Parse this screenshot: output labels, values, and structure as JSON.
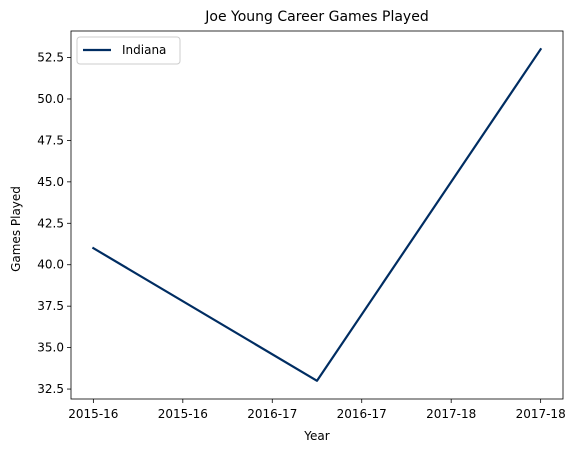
{
  "chart_data": {
    "type": "line",
    "title": "Joe Young  Career Games Played",
    "xlabel": "Year",
    "ylabel": "Games Played",
    "x": [
      0,
      1,
      2
    ],
    "x_tick_positions": [
      0,
      0.4,
      0.8,
      1.2,
      1.6,
      2.0
    ],
    "x_tick_labels": [
      "2015-16",
      "2015-16",
      "2016-17",
      "2016-17",
      "2017-18",
      "2017-18"
    ],
    "xlim": [
      -0.1,
      2.1
    ],
    "ylim": [
      31.9,
      54.1
    ],
    "y_ticks": [
      32.5,
      35.0,
      37.5,
      40.0,
      42.5,
      45.0,
      47.5,
      50.0,
      52.5
    ],
    "y_tick_labels": [
      "32.5",
      "35.0",
      "37.5",
      "40.0",
      "42.5",
      "45.0",
      "47.5",
      "50.0",
      "52.5"
    ],
    "series": [
      {
        "name": "Indiana",
        "values": [
          41,
          33,
          53
        ],
        "color": "#002D62"
      }
    ],
    "legend_position": "top-left",
    "grid": false
  }
}
